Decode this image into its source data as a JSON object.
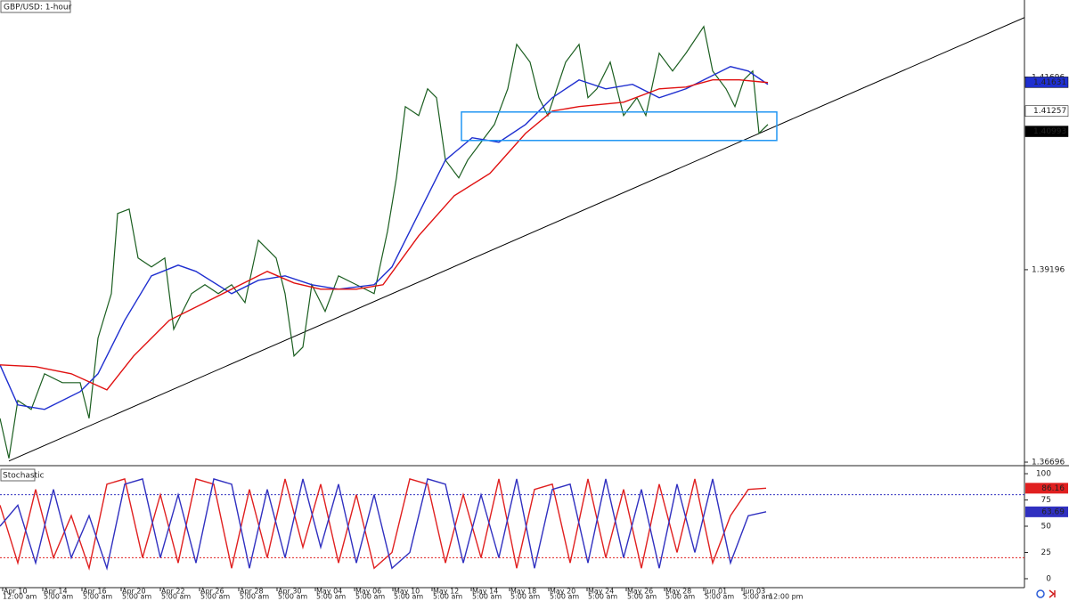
{
  "chart_data": [
    {
      "type": "line",
      "title": "GBP/USD: 1-hour",
      "xlim": [
        0,
        1150
      ],
      "ylim": [
        1.3665,
        1.427
      ],
      "yticks": [
        1.36696,
        1.39196,
        1.41696
      ],
      "xticks": [
        {
          "value": 3,
          "label": "Apr 10"
        },
        {
          "value": 48,
          "label": "Apr 14"
        },
        {
          "value": 92,
          "label": "Apr 16"
        },
        {
          "value": 136,
          "label": "Apr 20"
        },
        {
          "value": 180,
          "label": "Apr 22"
        },
        {
          "value": 224,
          "label": "Apr 26"
        },
        {
          "value": 268,
          "label": "Apr 28"
        },
        {
          "value": 311,
          "label": "Apr 30"
        },
        {
          "value": 354,
          "label": "May 04"
        },
        {
          "value": 398,
          "label": "May 06"
        },
        {
          "value": 441,
          "label": "May 10"
        },
        {
          "value": 485,
          "label": "May 12"
        },
        {
          "value": 529,
          "label": "May 14"
        },
        {
          "value": 572,
          "label": "May 18"
        },
        {
          "value": 616,
          "label": "May 20"
        },
        {
          "value": 659,
          "label": "May 24"
        },
        {
          "value": 703,
          "label": "May 26"
        },
        {
          "value": 746,
          "label": "May 28"
        },
        {
          "value": 790,
          "label": "Jun 01"
        },
        {
          "value": 833,
          "label": "Jun 03"
        }
      ],
      "time_ticks": [
        {
          "value": 3,
          "label": "12:00 am"
        },
        {
          "value": 48,
          "label": "5:00 am"
        },
        {
          "value": 92,
          "label": "5:00 am"
        },
        {
          "value": 136,
          "label": "5:00 am"
        },
        {
          "value": 180,
          "label": "5:00 am"
        },
        {
          "value": 224,
          "label": "5:00 am"
        },
        {
          "value": 268,
          "label": "5:00 am"
        },
        {
          "value": 311,
          "label": "5:00 am"
        },
        {
          "value": 354,
          "label": "5:00 am"
        },
        {
          "value": 398,
          "label": "5:00 am"
        },
        {
          "value": 441,
          "label": "5:00 am"
        },
        {
          "value": 485,
          "label": "5:00 am"
        },
        {
          "value": 529,
          "label": "5:00 am"
        },
        {
          "value": 572,
          "label": "5:00 am"
        },
        {
          "value": 616,
          "label": "5:00 am"
        },
        {
          "value": 659,
          "label": "5:00 am"
        },
        {
          "value": 703,
          "label": "5:00 am"
        },
        {
          "value": 746,
          "label": "5:00 am"
        },
        {
          "value": 790,
          "label": "5:00 am"
        },
        {
          "value": 833,
          "label": "5:00 am"
        },
        {
          "value": 862,
          "label": "12:00 pm"
        }
      ],
      "series": [
        {
          "color": "#1b5e20",
          "x": [
            0,
            10,
            20,
            35,
            50,
            70,
            90,
            100,
            110,
            125,
            132,
            145,
            155,
            170,
            185,
            195,
            205,
            215,
            230,
            245,
            260,
            275,
            290,
            310,
            320,
            330,
            340,
            350,
            365,
            380,
            400,
            420,
            435,
            445,
            455,
            470,
            480,
            490,
            500,
            515,
            525,
            540,
            555,
            570,
            580,
            595,
            605,
            615,
            635,
            650,
            660,
            670,
            685,
            700,
            715,
            725,
            740,
            755,
            770,
            790,
            800,
            815,
            825,
            835,
            845,
            852,
            862
          ],
          "values": [
            1.37265,
            1.36745,
            1.37497,
            1.37381,
            1.37844,
            1.37728,
            1.37728,
            1.37265,
            1.38307,
            1.38885,
            1.39926,
            1.39984,
            1.39348,
            1.39232,
            1.39348,
            1.38422,
            1.38654,
            1.38885,
            1.39001,
            1.38885,
            1.39001,
            1.38769,
            1.39579,
            1.39348,
            1.38885,
            1.38075,
            1.38191,
            1.39001,
            1.38654,
            1.39116,
            1.39001,
            1.38885,
            1.39695,
            1.40389,
            1.41315,
            1.41199,
            1.41546,
            1.4143,
            1.4062,
            1.40389,
            1.4062,
            1.40852,
            1.41083,
            1.41546,
            1.42124,
            1.41893,
            1.4143,
            1.41199,
            1.41893,
            1.42124,
            1.4143,
            1.41546,
            1.41893,
            1.41199,
            1.4143,
            1.41199,
            1.42009,
            1.41777,
            1.42009,
            1.42356,
            1.41777,
            1.41546,
            1.41315,
            1.41662,
            1.41777,
            1.40968,
            1.41083
          ]
        },
        {
          "color": "#1f2fd0",
          "x": [
            0,
            20,
            50,
            90,
            110,
            140,
            170,
            200,
            220,
            260,
            290,
            320,
            350,
            380,
            420,
            440,
            470,
            500,
            530,
            560,
            590,
            620,
            650,
            680,
            710,
            740,
            770,
            800,
            820,
            840,
            862
          ],
          "values": [
            1.37959,
            1.37439,
            1.37381,
            1.37612,
            1.37844,
            1.38538,
            1.39116,
            1.39255,
            1.39174,
            1.38885,
            1.39058,
            1.39116,
            1.39001,
            1.38943,
            1.39001,
            1.39232,
            1.39926,
            1.4062,
            1.4091,
            1.40852,
            1.41083,
            1.4143,
            1.41662,
            1.41546,
            1.41604,
            1.4143,
            1.41546,
            1.4172,
            1.41835,
            1.41777,
            1.41604
          ]
        },
        {
          "color": "#e01010",
          "x": [
            0,
            40,
            80,
            120,
            150,
            190,
            230,
            270,
            300,
            330,
            360,
            400,
            430,
            470,
            510,
            550,
            590,
            620,
            650,
            700,
            740,
            770,
            800,
            830,
            862
          ],
          "values": [
            1.37959,
            1.37936,
            1.37844,
            1.37635,
            1.38075,
            1.38538,
            1.38769,
            1.39001,
            1.39174,
            1.39024,
            1.38943,
            1.38943,
            1.39001,
            1.39637,
            1.40158,
            1.40447,
            1.40968,
            1.41257,
            1.41315,
            1.41372,
            1.41546,
            1.41569,
            1.41662,
            1.41662,
            1.41627
          ]
        }
      ],
      "trendline": {
        "x": [
          10,
          1150
        ],
        "values": [
          1.3671,
          1.42472
        ],
        "color": "#000000"
      },
      "range_box": {
        "x": [
          518,
          872
        ],
        "values": [
          1.41245,
          1.40875
        ],
        "color": "#2196f3"
      },
      "price_tags": [
        {
          "value": 1.41631,
          "color": "#1f2fd0",
          "text_color": "#ffffff"
        },
        {
          "value": 1.41257,
          "color": "#ffffff",
          "text_color": "#000000"
        },
        {
          "value": 1.40993,
          "color": "#000000",
          "text_color": "#ffffff"
        }
      ]
    },
    {
      "type": "line",
      "title": "Stochastic",
      "ylim": [
        -8.5,
        106.8
      ],
      "yticks": [
        0,
        25,
        50,
        75,
        100
      ],
      "levels": [
        {
          "value": 80,
          "color": "#3030c0"
        },
        {
          "value": 20,
          "color": "#e02020"
        }
      ],
      "x": [
        0,
        20,
        40,
        60,
        80,
        100,
        120,
        140,
        160,
        180,
        200,
        220,
        240,
        260,
        280,
        300,
        320,
        340,
        360,
        380,
        400,
        420,
        440,
        460,
        480,
        500,
        520,
        540,
        560,
        580,
        600,
        620,
        640,
        660,
        680,
        700,
        720,
        740,
        760,
        780,
        800,
        820,
        840,
        860
      ],
      "series": [
        {
          "color": "#e02020",
          "values": [
            70,
            15,
            85,
            20,
            60,
            10,
            90,
            95,
            20,
            80,
            15,
            95,
            90,
            10,
            85,
            20,
            95,
            30,
            90,
            15,
            80,
            10,
            25,
            95,
            90,
            15,
            80,
            20,
            95,
            10,
            85,
            90,
            15,
            95,
            20,
            85,
            10,
            90,
            25,
            95,
            15,
            60,
            85,
            86.16
          ]
        },
        {
          "color": "#3030c0",
          "values": [
            50,
            70,
            15,
            85,
            20,
            60,
            10,
            90,
            95,
            20,
            80,
            15,
            95,
            90,
            10,
            85,
            20,
            95,
            30,
            90,
            15,
            80,
            10,
            25,
            95,
            90,
            15,
            80,
            20,
            95,
            10,
            85,
            90,
            15,
            95,
            20,
            85,
            10,
            90,
            25,
            95,
            15,
            60,
            63.69
          ]
        }
      ]
    }
  ]
}
